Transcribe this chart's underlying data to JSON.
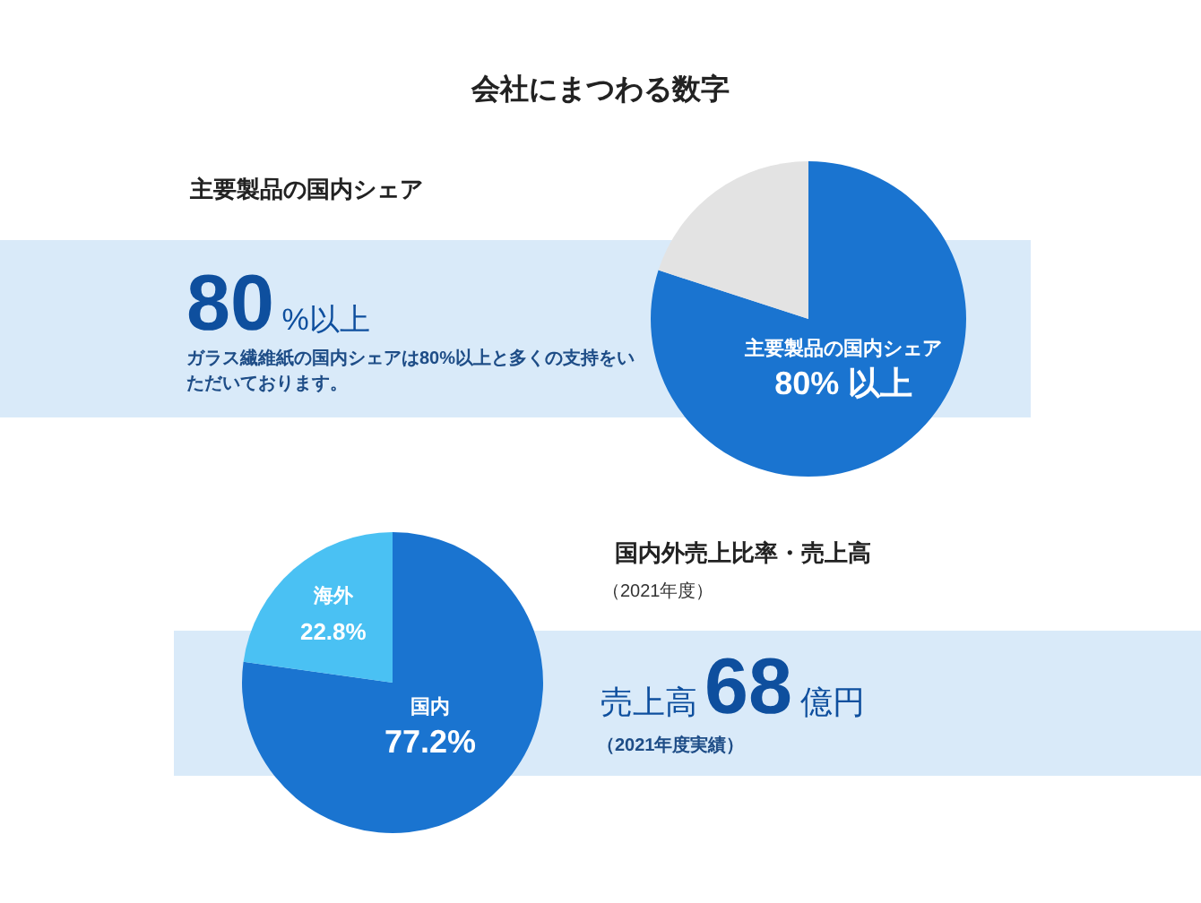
{
  "chart_data": [
    {
      "type": "pie",
      "title": "会社にまつわる数字",
      "subtitle": "主要製品の国内シェア",
      "categories": [
        "主要製品の国内シェア",
        null
      ],
      "values": [
        80,
        20
      ],
      "colors": [
        "#1a74d0",
        "#e3e3e3"
      ],
      "value_labels": [
        "80% 以上",
        null
      ],
      "annotations": [
        "80%以上",
        "ガラス繊維紙の国内シェアは80%以上と多くの支持をいただいております。"
      ]
    },
    {
      "type": "pie",
      "title": "国内外売上比率・売上高",
      "subtitle": "（2021年度）",
      "categories": [
        "国内",
        "海外"
      ],
      "values": [
        77.2,
        22.8
      ],
      "colors": [
        "#1a74d0",
        "#4ac1f3"
      ],
      "value_labels": [
        "77.2%",
        "22.8%"
      ],
      "annotations": [
        "売上高68億円",
        "（2021年度実績）"
      ]
    }
  ]
}
